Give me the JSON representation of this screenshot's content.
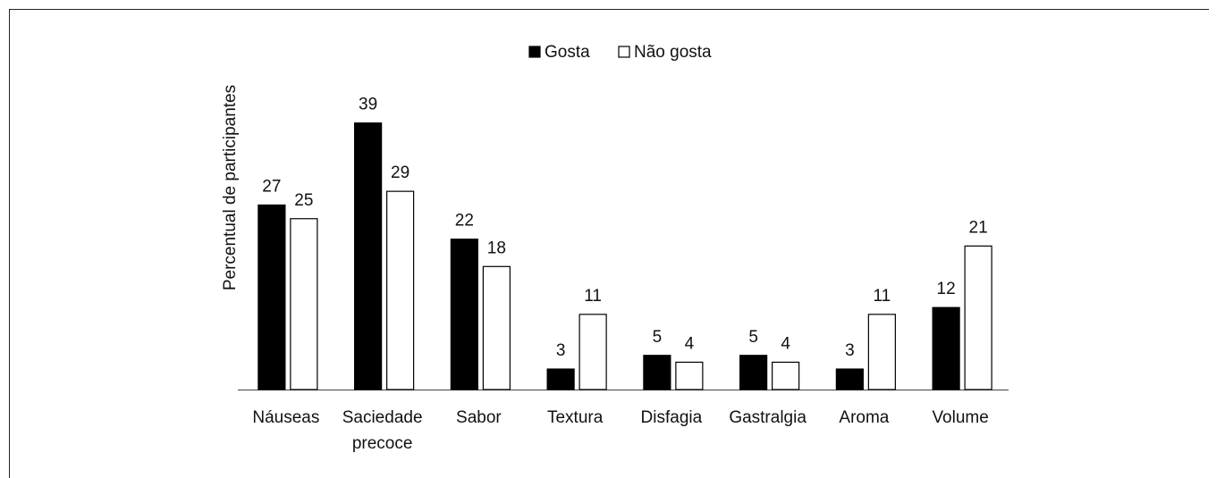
{
  "chart_data": {
    "type": "bar",
    "ylabel": "Percentual de participantes",
    "categories": [
      "Náuseas",
      "Saciedade precoce",
      "Sabor",
      "Textura",
      "Disfagia",
      "Gastralgia",
      "Aroma",
      "Volume"
    ],
    "series": [
      {
        "name": "Gosta",
        "color": "#000000",
        "values": [
          27,
          39,
          22,
          3,
          5,
          5,
          3,
          12
        ]
      },
      {
        "name": "Não gosta",
        "color": "#ffffff",
        "values": [
          25,
          29,
          18,
          11,
          4,
          4,
          11,
          21
        ]
      }
    ],
    "ylim": [
      0,
      40
    ],
    "legend": "top"
  }
}
